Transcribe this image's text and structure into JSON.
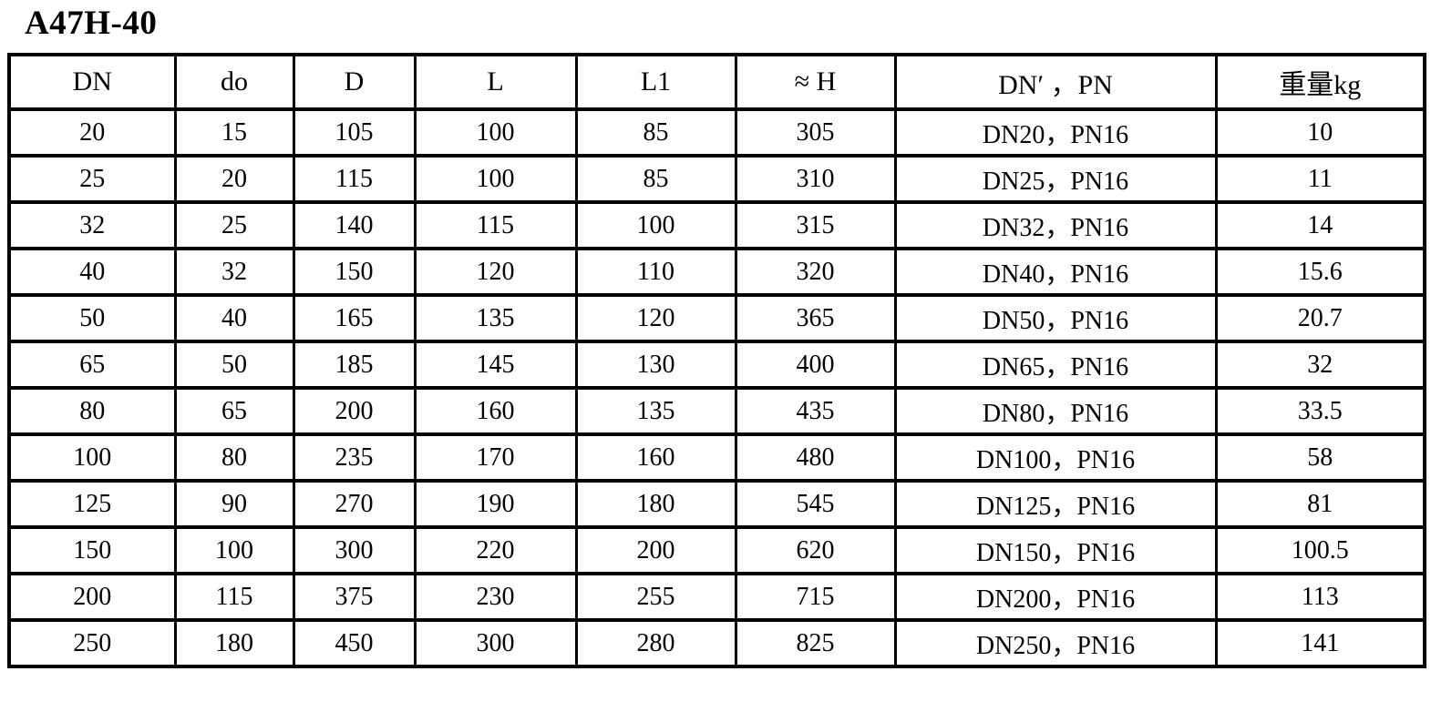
{
  "page": {
    "title": "A47H-40"
  },
  "table": {
    "columns": [
      "DN",
      "do",
      "D",
      "L",
      "L1",
      "≈ H",
      "DN′ ，PN",
      "重量kg"
    ],
    "rows": [
      [
        "20",
        "15",
        "105",
        "100",
        "85",
        "305",
        "DN20，PN16",
        "10"
      ],
      [
        "25",
        "20",
        "115",
        "100",
        "85",
        "310",
        "DN25，PN16",
        "11"
      ],
      [
        "32",
        "25",
        "140",
        "115",
        "100",
        "315",
        "DN32，PN16",
        "14"
      ],
      [
        "40",
        "32",
        "150",
        "120",
        "110",
        "320",
        "DN40，PN16",
        "15.6"
      ],
      [
        "50",
        "40",
        "165",
        "135",
        "120",
        "365",
        "DN50，PN16",
        "20.7"
      ],
      [
        "65",
        "50",
        "185",
        "145",
        "130",
        "400",
        "DN65，PN16",
        "32"
      ],
      [
        "80",
        "65",
        "200",
        "160",
        "135",
        "435",
        "DN80，PN16",
        "33.5"
      ],
      [
        "100",
        "80",
        "235",
        "170",
        "160",
        "480",
        "DN100，PN16",
        "58"
      ],
      [
        "125",
        "90",
        "270",
        "190",
        "180",
        "545",
        "DN125，PN16",
        "81"
      ],
      [
        "150",
        "100",
        "300",
        "220",
        "200",
        "620",
        "DN150，PN16",
        "100.5"
      ],
      [
        "200",
        "115",
        "375",
        "230",
        "255",
        "715",
        "DN200，PN16",
        "113"
      ],
      [
        "250",
        "180",
        "450",
        "300",
        "280",
        "825",
        "DN250，PN16",
        "141"
      ]
    ]
  }
}
